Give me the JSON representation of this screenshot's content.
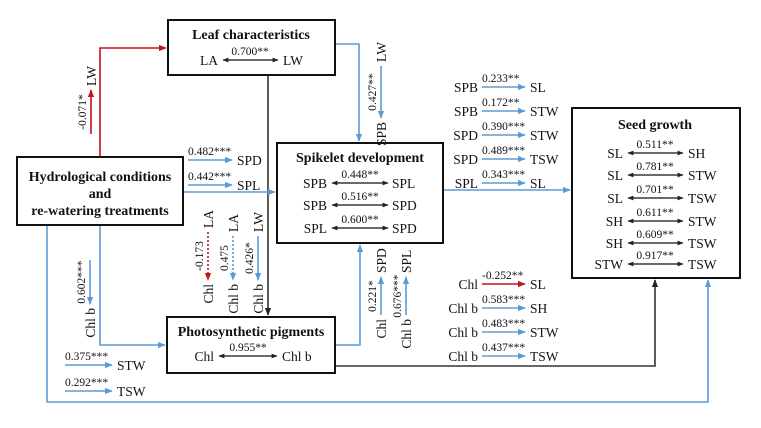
{
  "colors": {
    "positive": "#5b9bd5",
    "negative": "#c0161b",
    "box_link": "#333333"
  },
  "boxes": {
    "leaf": {
      "title": "Leaf characteristics",
      "correlations": [
        {
          "a": "LA",
          "r": "0.700**",
          "b": "LW"
        }
      ]
    },
    "hydro": {
      "title_lines": [
        "Hydrological conditions",
        "and",
        "re-watering treatments"
      ]
    },
    "spikelet": {
      "title": "Spikelet development",
      "correlations": [
        {
          "a": "SPB",
          "r": "0.448**",
          "b": "SPL"
        },
        {
          "a": "SPB",
          "r": "0.516**",
          "b": "SPD"
        },
        {
          "a": "SPL",
          "r": "0.600**",
          "b": "SPD"
        }
      ]
    },
    "photo": {
      "title": "Photosynthetic pigments",
      "correlations": [
        {
          "a": "Chl",
          "r": "0.955**",
          "b": "Chl b"
        }
      ]
    },
    "seed": {
      "title": "Seed growth",
      "correlations": [
        {
          "a": "SL",
          "r": "0.511**",
          "b": "SH"
        },
        {
          "a": "SL",
          "r": "0.781**",
          "b": "STW"
        },
        {
          "a": "SL",
          "r": "0.701**",
          "b": "TSW"
        },
        {
          "a": "SH",
          "r": "0.611**",
          "b": "STW"
        },
        {
          "a": "SH",
          "r": "0.609**",
          "b": "TSW"
        },
        {
          "a": "STW",
          "r": "0.917**",
          "b": "TSW"
        }
      ]
    }
  },
  "paths": {
    "hydro_to_leaf": [
      {
        "r": "-0.071*",
        "to": "LW",
        "sign": "negative"
      }
    ],
    "leaf_to_spikelet": [
      {
        "from": "LW",
        "r": "0.427**",
        "to": "SPB"
      }
    ],
    "leaf_to_photo": [
      {
        "from": "LA",
        "r": "-0.173",
        "to": "Chl",
        "sign": "negative",
        "significant": false
      },
      {
        "from": "LA",
        "r": "0.475",
        "to": "Chl b",
        "significant": false
      },
      {
        "from": "LW",
        "r": "0.426*",
        "to": "Chl b"
      }
    ],
    "hydro_to_spikelet": [
      {
        "r": "0.482***",
        "to": "SPD"
      },
      {
        "r": "0.442***",
        "to": "SPL"
      }
    ],
    "hydro_to_photo": [
      {
        "r": "0.602***",
        "to": "Chl b"
      }
    ],
    "hydro_to_seed": [
      {
        "r": "0.375***",
        "to": "STW"
      },
      {
        "r": "0.292***",
        "to": "TSW"
      }
    ],
    "spikelet_to_seed": [
      {
        "from": "SPB",
        "r": "0.233**",
        "to": "SL"
      },
      {
        "from": "SPB",
        "r": "0.172**",
        "to": "STW"
      },
      {
        "from": "SPD",
        "r": "0.390***",
        "to": "STW"
      },
      {
        "from": "SPD",
        "r": "0.489***",
        "to": "TSW"
      },
      {
        "from": "SPL",
        "r": "0.343***",
        "to": "SL"
      }
    ],
    "photo_to_spikelet": [
      {
        "from": "Chl",
        "r": "0.221*",
        "to": "SPD"
      },
      {
        "from": "Chl b",
        "r": "0.676***",
        "to": "SPL"
      }
    ],
    "photo_to_seed": [
      {
        "from": "Chl",
        "r": "-0.252**",
        "to": "SL",
        "sign": "negative"
      },
      {
        "from": "Chl b",
        "r": "0.583***",
        "to": "SH"
      },
      {
        "from": "Chl b",
        "r": "0.483***",
        "to": "STW"
      },
      {
        "from": "Chl b",
        "r": "0.437***",
        "to": "TSW"
      }
    ]
  }
}
